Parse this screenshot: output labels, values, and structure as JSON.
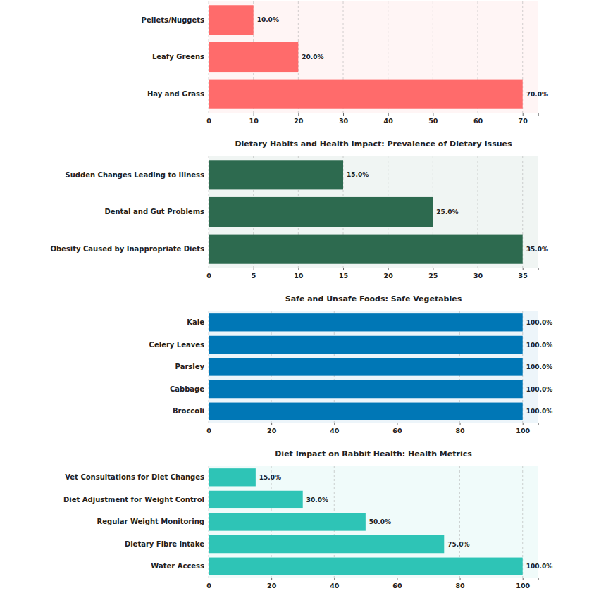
{
  "chart_data": [
    {
      "type": "bar",
      "orientation": "horizontal",
      "categories": [
        "Pellets/Nuggets",
        "Leafy Greens",
        "Hay and Grass"
      ],
      "values": [
        10,
        20,
        70
      ],
      "value_labels": [
        "10.0%",
        "20.0%",
        "70.0%"
      ],
      "color": "#ff6b6b",
      "xlim": [
        0,
        73.5
      ],
      "xticks": [
        0,
        10,
        20,
        30,
        40,
        50,
        60,
        70
      ],
      "grid": true,
      "data_labels": true
    },
    {
      "type": "bar",
      "orientation": "horizontal",
      "title": "Dietary Habits and Health Impact: Prevalence of Dietary Issues",
      "categories": [
        "Sudden Changes Leading to Illness",
        "Dental and Gut Problems",
        "Obesity Caused by Inappropriate Diets"
      ],
      "values": [
        15,
        25,
        35
      ],
      "value_labels": [
        "15.0%",
        "25.0%",
        "35.0%"
      ],
      "color": "#2d6a4f",
      "xlim": [
        0,
        36.75
      ],
      "xticks": [
        0,
        5,
        10,
        15,
        20,
        25,
        30,
        35
      ],
      "grid": true,
      "data_labels": true
    },
    {
      "type": "bar",
      "orientation": "horizontal",
      "title": "Safe and Unsafe Foods: Safe Vegetables",
      "categories": [
        "Kale",
        "Celery Leaves",
        "Parsley",
        "Cabbage",
        "Broccoli"
      ],
      "values": [
        100,
        100,
        100,
        100,
        100
      ],
      "value_labels": [
        "100.0%",
        "100.0%",
        "100.0%",
        "100.0%",
        "100.0%"
      ],
      "color": "#0077b6",
      "xlim": [
        0,
        105
      ],
      "xticks": [
        0,
        20,
        40,
        60,
        80,
        100
      ],
      "grid": true,
      "data_labels": true
    },
    {
      "type": "bar",
      "orientation": "horizontal",
      "title": "Diet Impact on Rabbit Health: Health Metrics",
      "categories": [
        "Vet Consultations for Diet Changes",
        "Diet Adjustment for Weight Control",
        "Regular Weight Monitoring",
        "Dietary Fibre Intake",
        "Water Access"
      ],
      "values": [
        15,
        30,
        50,
        75,
        100
      ],
      "value_labels": [
        "15.0%",
        "30.0%",
        "50.0%",
        "75.0%",
        "100.0%"
      ],
      "color": "#2ec4b6",
      "xlim": [
        0,
        105
      ],
      "xticks": [
        0,
        20,
        40,
        60,
        80,
        100
      ],
      "grid": true,
      "data_labels": true
    }
  ]
}
